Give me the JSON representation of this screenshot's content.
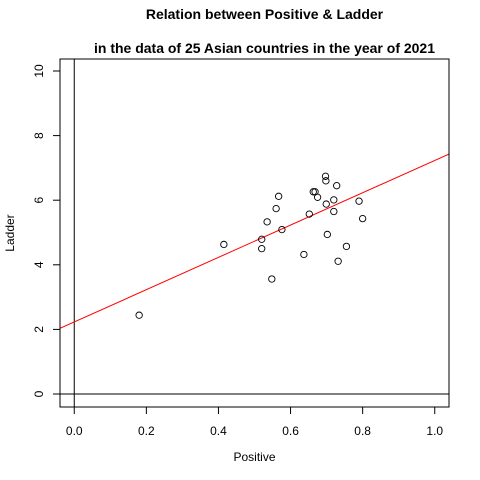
{
  "chart_data": {
    "type": "scatter",
    "title": "Relation between Positive & Ladder",
    "subtitle": "in the data of 25 Asian countries in the year of 2021",
    "xlabel": "Positive",
    "ylabel": "Ladder",
    "xlim": [
      0,
      1
    ],
    "ylim": [
      0,
      10
    ],
    "x_ticks": [
      "0.0",
      "0.2",
      "0.4",
      "0.6",
      "0.8",
      "1.0"
    ],
    "y_ticks": [
      "0",
      "2",
      "4",
      "6",
      "8",
      "10"
    ],
    "grid": false,
    "points": [
      {
        "x": 0.18,
        "y": 2.44
      },
      {
        "x": 0.415,
        "y": 4.63
      },
      {
        "x": 0.52,
        "y": 4.79
      },
      {
        "x": 0.52,
        "y": 4.5
      },
      {
        "x": 0.535,
        "y": 5.33
      },
      {
        "x": 0.548,
        "y": 3.56
      },
      {
        "x": 0.56,
        "y": 5.74
      },
      {
        "x": 0.567,
        "y": 6.12
      },
      {
        "x": 0.576,
        "y": 5.09
      },
      {
        "x": 0.637,
        "y": 4.32
      },
      {
        "x": 0.652,
        "y": 5.57
      },
      {
        "x": 0.663,
        "y": 6.26
      },
      {
        "x": 0.668,
        "y": 6.26
      },
      {
        "x": 0.675,
        "y": 6.09
      },
      {
        "x": 0.697,
        "y": 6.74
      },
      {
        "x": 0.698,
        "y": 6.6
      },
      {
        "x": 0.699,
        "y": 5.88
      },
      {
        "x": 0.702,
        "y": 4.94
      },
      {
        "x": 0.72,
        "y": 6.01
      },
      {
        "x": 0.72,
        "y": 5.65
      },
      {
        "x": 0.728,
        "y": 6.45
      },
      {
        "x": 0.732,
        "y": 4.11
      },
      {
        "x": 0.755,
        "y": 4.57
      },
      {
        "x": 0.79,
        "y": 5.97
      },
      {
        "x": 0.8,
        "y": 5.43
      }
    ],
    "regression_line": {
      "intercept": 2.23,
      "slope": 5.0,
      "color": "#ff0000"
    },
    "reference_lines": {
      "vertical_x": 0,
      "horizontal_y": 0,
      "color": "#000000"
    },
    "point_color": "#000000"
  }
}
